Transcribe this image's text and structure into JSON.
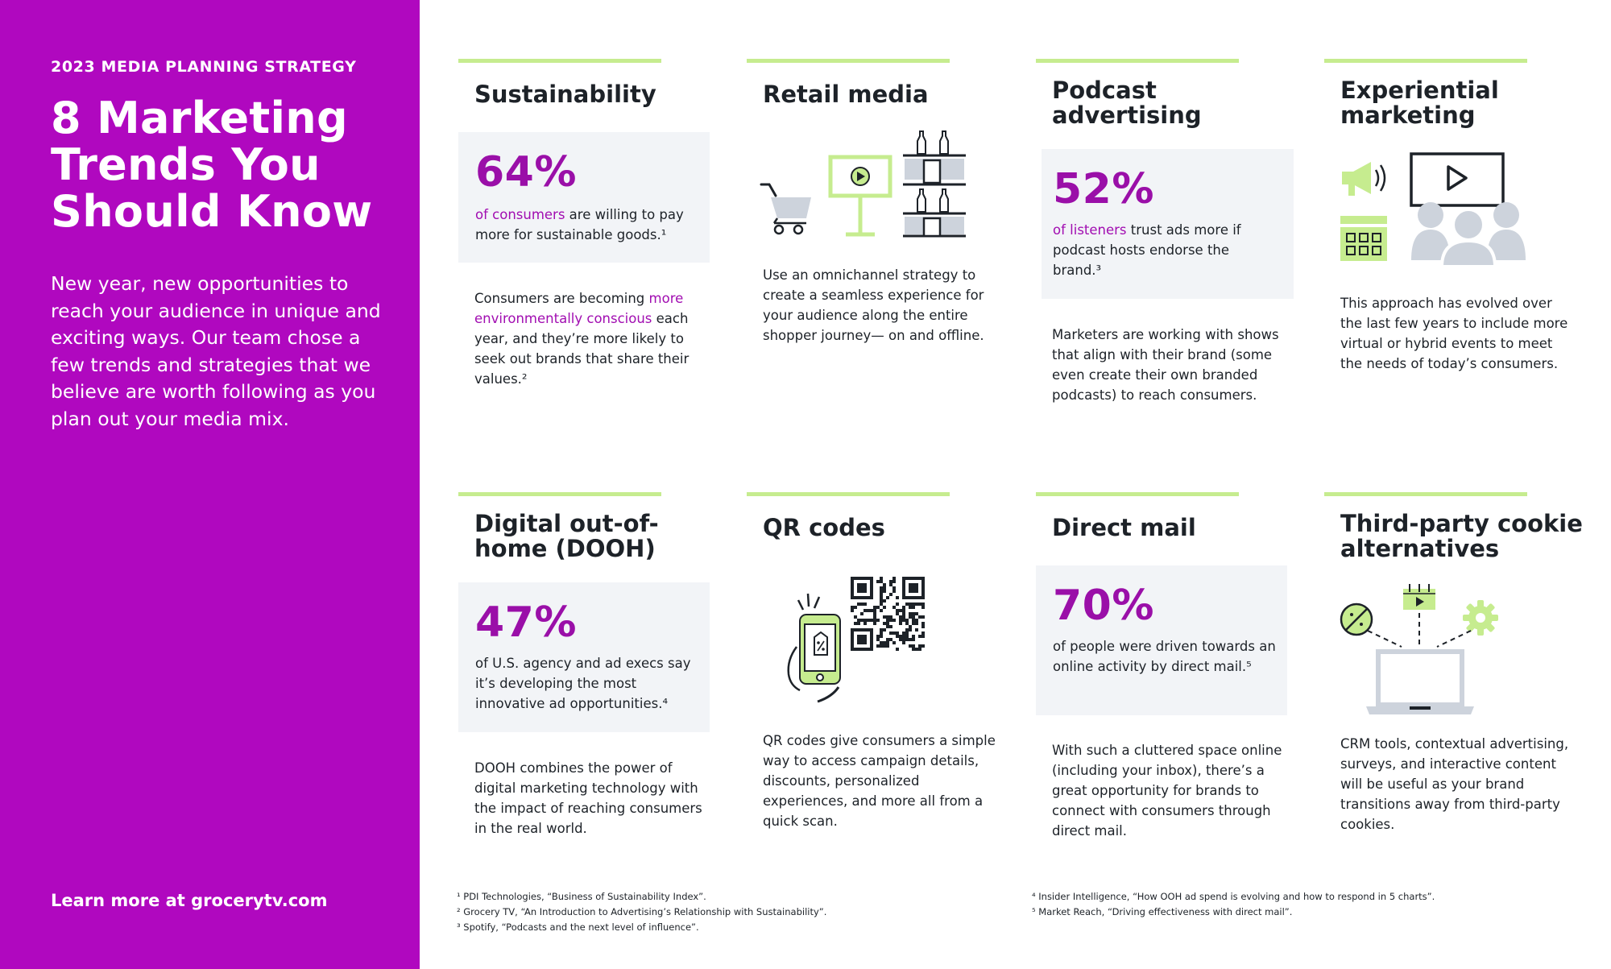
{
  "sidebar": {
    "eyebrow": "2023 MEDIA PLANNING STRATEGY",
    "title": "8 Marketing Trends You Should Know",
    "intro": "New year, new opportunities to reach your audience in unique and exciting ways. Our team chose a few trends and strategies that we believe are worth following as you plan out your media mix.",
    "learn_more": "Learn more at grocerytv.com"
  },
  "cards": {
    "sustainability": {
      "heading": "Sustainability",
      "percent": "64%",
      "stat_highlight": "of consumers",
      "stat_rest": " are willing to pay more for sustainable goods.¹",
      "body_pre": "Consumers are becoming ",
      "body_highlight": "more environmentally conscious",
      "body_post": " each year, and they’re more likely to seek out brands that share their values.²"
    },
    "retail_media": {
      "heading": "Retail media",
      "body": "Use an omnichannel strategy to create a seamless experience for your audience along the entire shopper journey— on and offline."
    },
    "podcast": {
      "heading": "Podcast advertising",
      "percent": "52%",
      "stat_highlight": "of listeners",
      "stat_rest": " trust ads more if podcast hosts endorse the brand.³",
      "body": "Marketers are working with shows that align with their brand (some even create their own branded podcasts) to reach consumers."
    },
    "experiential": {
      "heading": "Experiential marketing",
      "body": "This approach has evolved over the last few years to include more virtual or hybrid events to meet the needs of today’s consumers."
    },
    "dooh": {
      "heading": "Digital out-of-home (DOOH)",
      "percent": "47%",
      "stat": "of U.S. agency and ad execs say it’s developing the most innovative ad opportunities.⁴",
      "body": "DOOH combines the power of digital marketing technology with the impact of reaching consumers in the real world."
    },
    "qr": {
      "heading": "QR codes",
      "body": "QR codes give consumers a simple way to access campaign details, discounts, personalized experiences, and more all from a quick scan."
    },
    "direct_mail": {
      "heading": "Direct mail",
      "percent": "70%",
      "stat": "of people were driven towards an online activity by direct mail.⁵",
      "body": "With such a cluttered space online (including your inbox), there’s a great opportunity for brands to connect with consumers through direct mail."
    },
    "cookies": {
      "heading": "Third-party cookie alternatives",
      "body": "CRM tools, contextual advertising, surveys, and interactive content will be useful as your brand transitions away from third-party cookies."
    }
  },
  "footnotes": {
    "left": [
      "¹ PDI Technologies, “Business of Sustainability Index”.",
      "² Grocery TV, “An Introduction to Advertising’s Relationship with Sustainability”.",
      "³ Spotify, “Podcasts and the next level of influence”."
    ],
    "right": [
      "⁴ Insider Intelligence, “How OOH ad spend is evolving and how to respond in 5 charts”.",
      "⁵ Market Reach, “Driving effectiveness with direct mail”."
    ]
  },
  "colors": {
    "brand_purple": "#b008bf",
    "accent_green": "#c6ec8f",
    "stat_purple": "#9a0fa8",
    "card_gray": "#f2f4f7"
  },
  "icons": [
    "shopping-cart-icon",
    "digital-sign-icon",
    "store-shelf-icon",
    "megaphone-icon",
    "calendar-icon",
    "video-screen-icon",
    "audience-icon",
    "phone-icon",
    "price-tag-icon",
    "qr-code-icon",
    "no-cookie-icon",
    "gear-icon",
    "laptop-icon"
  ]
}
